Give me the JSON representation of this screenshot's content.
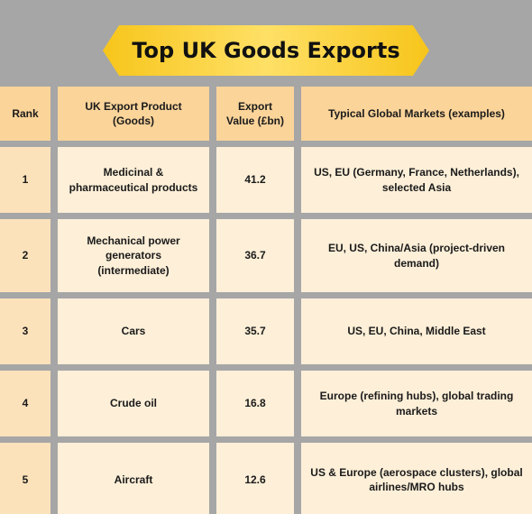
{
  "title": "Top UK Goods Exports",
  "headers": {
    "rank": "Rank",
    "product": "UK Export Product\n(Goods)",
    "value": "Export\nValue (£bn)",
    "markets": "Typical Global Markets (examples)"
  },
  "rows": [
    {
      "rank": "1",
      "product": "Medicinal &\npharmaceutical products",
      "value": "41.2",
      "markets": "US, EU (Germany, France, Netherlands),\nselected Asia"
    },
    {
      "rank": "2",
      "product": "Mechanical power\ngenerators\n(intermediate)",
      "value": "36.7",
      "markets": "EU, US, China/Asia (project-driven\ndemand)"
    },
    {
      "rank": "3",
      "product": "Cars",
      "value": "35.7",
      "markets": "US, EU, China, Middle East"
    },
    {
      "rank": "4",
      "product": "Crude oil",
      "value": "16.8",
      "markets": "Europe (refining hubs), global trading\nmarkets"
    },
    {
      "rank": "5",
      "product": "Aircraft",
      "value": "12.6",
      "markets": "US & Europe (aerospace clusters), global\nairlines/MRO hubs"
    }
  ],
  "colors": {
    "background": "#a6a6a6",
    "banner": "#fcd535",
    "header_cell": "#fbd49a",
    "rank_cell": "#fce2bb",
    "body_cell": "#fdefd8"
  }
}
